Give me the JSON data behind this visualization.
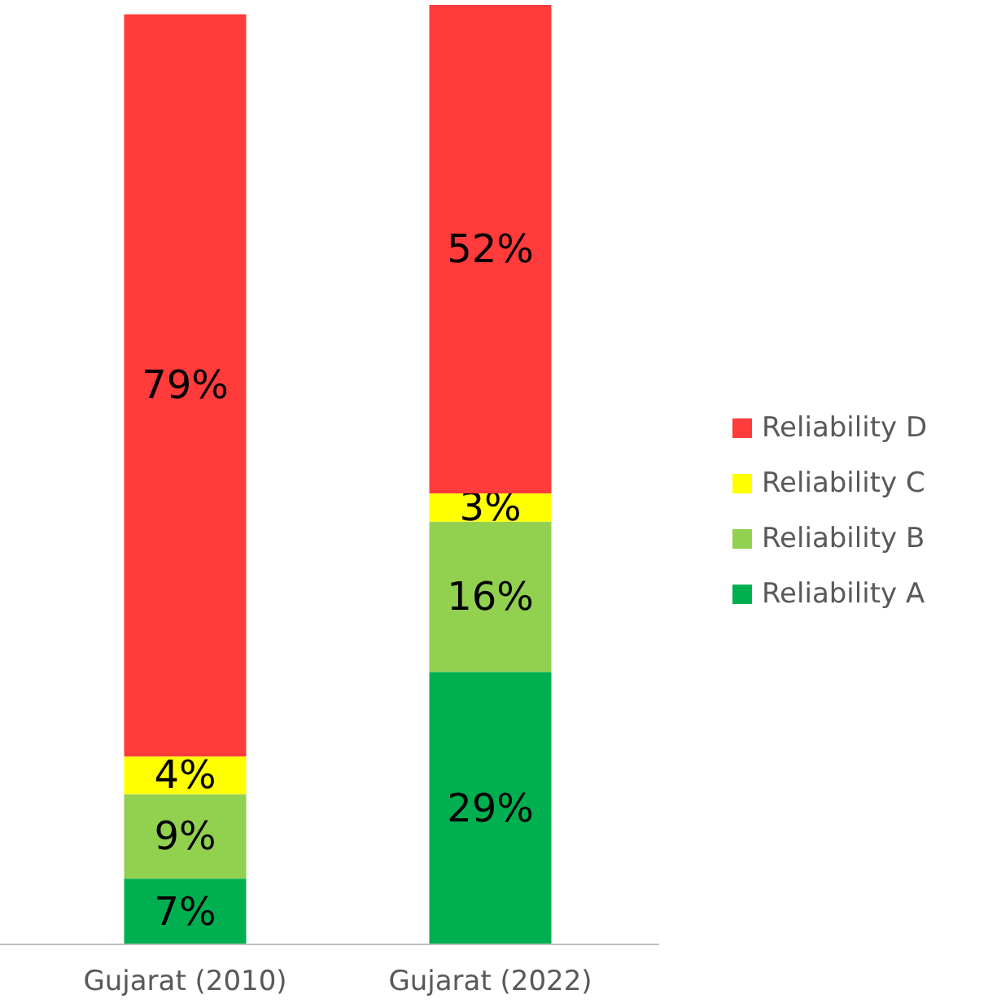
{
  "chart_data": {
    "type": "bar",
    "stacked": true,
    "categories": [
      "Gujarat (2010)",
      "Gujarat (2022)"
    ],
    "legend": "right",
    "series": [
      {
        "name": "Reliability A",
        "color": "#00b050",
        "values": [
          7,
          29
        ],
        "value_labels": [
          "7%",
          "29%"
        ]
      },
      {
        "name": "Reliability B",
        "color": "#92d050",
        "values": [
          9,
          16
        ],
        "value_labels": [
          "9%",
          "16%"
        ]
      },
      {
        "name": "Reliability C",
        "color": "#ffff00",
        "values": [
          4,
          3
        ],
        "value_labels": [
          "4%",
          "3%"
        ]
      },
      {
        "name": "Reliability D",
        "color": "#ff3b3b",
        "values": [
          79,
          52
        ],
        "value_labels": [
          "79%",
          "52%"
        ]
      }
    ]
  }
}
